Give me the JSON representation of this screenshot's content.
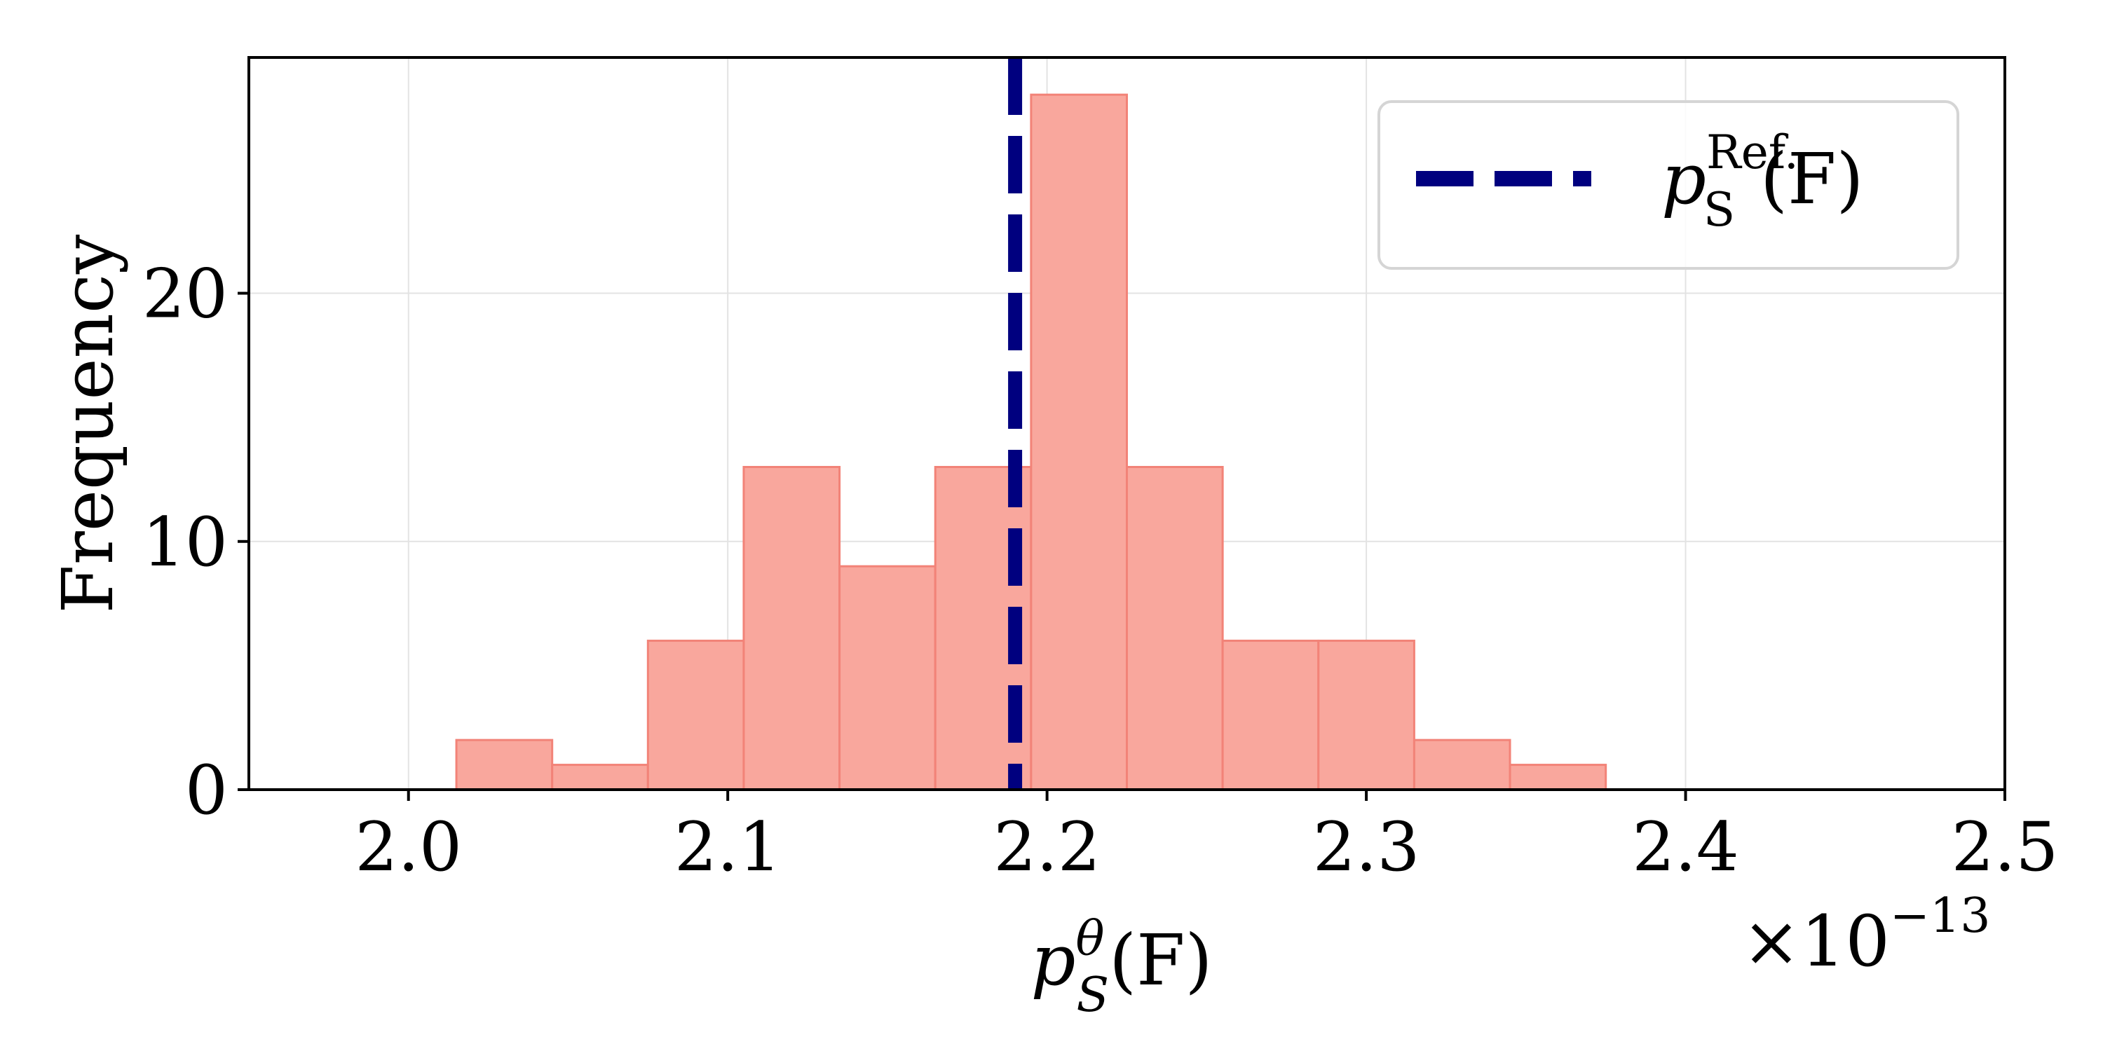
{
  "chart_data": {
    "type": "bar",
    "subtype": "histogram",
    "bin_width": 0.03,
    "bins": [
      {
        "x0": 2.015,
        "x1": 2.045,
        "count": 2
      },
      {
        "x0": 2.045,
        "x1": 2.075,
        "count": 1
      },
      {
        "x0": 2.075,
        "x1": 2.105,
        "count": 6
      },
      {
        "x0": 2.105,
        "x1": 2.135,
        "count": 13
      },
      {
        "x0": 2.135,
        "x1": 2.165,
        "count": 9
      },
      {
        "x0": 2.165,
        "x1": 2.195,
        "count": 13
      },
      {
        "x0": 2.195,
        "x1": 2.225,
        "count": 28
      },
      {
        "x0": 2.225,
        "x1": 2.255,
        "count": 13
      },
      {
        "x0": 2.255,
        "x1": 2.285,
        "count": 6
      },
      {
        "x0": 2.285,
        "x1": 2.315,
        "count": 6
      },
      {
        "x0": 2.315,
        "x1": 2.345,
        "count": 2
      },
      {
        "x0": 2.345,
        "x1": 2.375,
        "count": 1
      }
    ],
    "reference_line": {
      "x": 2.19,
      "style": "dashed",
      "color": "#00007f"
    },
    "xlim": [
      1.95,
      2.5
    ],
    "ylim": [
      0,
      29.5
    ],
    "xticks": [
      2.0,
      2.1,
      2.2,
      2.3,
      2.4,
      2.5
    ],
    "xtick_labels": [
      "2.0",
      "2.1",
      "2.2",
      "2.3",
      "2.4",
      "2.5"
    ],
    "yticks": [
      0,
      10,
      20
    ],
    "ytick_labels": [
      "0",
      "10",
      "20"
    ],
    "x_offset_text": {
      "base": "×10",
      "exponent": "−13"
    },
    "ylabel": "Frequency",
    "xlabel": {
      "main": "p",
      "sup": "θ",
      "sub": "S",
      "tail": "(F)"
    },
    "legend": {
      "position": "top-right",
      "entries": [
        {
          "label_main": "p",
          "label_sup": "Ref.",
          "label_sub": "S",
          "label_tail": "(F)",
          "style": "dashed"
        }
      ]
    },
    "grid": true,
    "colors": {
      "bar_fill": "#f9a79d",
      "bar_edge": "#f28378",
      "reference_line": "#00007f",
      "grid": "#e3e3e3",
      "axes": "#000000",
      "legend_border": "#d5d5d5"
    }
  }
}
